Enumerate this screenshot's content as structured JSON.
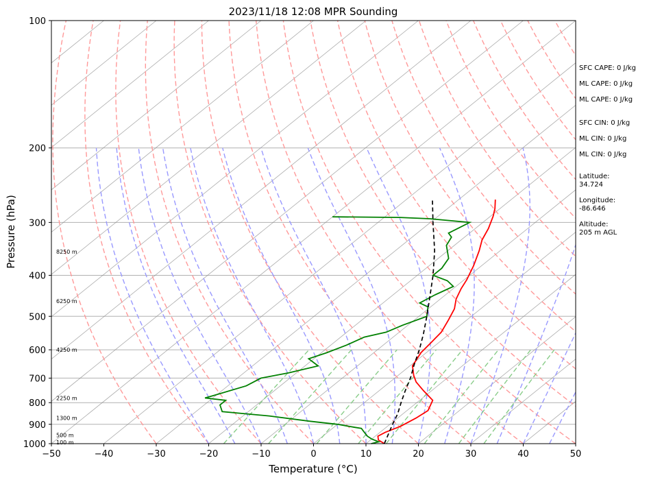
{
  "chart_data": {
    "type": "line",
    "title": "2023/11/18 12:08 MPR Sounding",
    "xlabel": "Temperature (°C)",
    "ylabel": "Pressure (hPa)",
    "xlim": [
      -50,
      50
    ],
    "ylim": [
      1000,
      100
    ],
    "y_scale": "log",
    "grid": true,
    "x_ticks": [
      -50,
      -40,
      -30,
      -20,
      -10,
      0,
      10,
      20,
      30,
      40,
      50
    ],
    "y_ticks": [
      100,
      200,
      300,
      400,
      500,
      600,
      700,
      800,
      900,
      1000
    ],
    "series": [
      {
        "color": "#ff0000",
        "points": [
          {
            "p": 1000,
            "t": 13.5
          },
          {
            "p": 980,
            "t": 11.5
          },
          {
            "p": 960,
            "t": 10.5
          },
          {
            "p": 940,
            "t": 11.0
          },
          {
            "p": 910,
            "t": 12.5
          },
          {
            "p": 870,
            "t": 13.5
          },
          {
            "p": 835,
            "t": 14.0
          },
          {
            "p": 790,
            "t": 12.5
          },
          {
            "p": 750,
            "t": 8.5
          },
          {
            "p": 715,
            "t": 5.0
          },
          {
            "p": 690,
            "t": 3.0
          },
          {
            "p": 655,
            "t": 0.5
          },
          {
            "p": 610,
            "t": -1.0
          },
          {
            "p": 575,
            "t": -1.5
          },
          {
            "p": 545,
            "t": -2.0
          },
          {
            "p": 510,
            "t": -3.5
          },
          {
            "p": 480,
            "t": -5.0
          },
          {
            "p": 455,
            "t": -7.0
          },
          {
            "p": 430,
            "t": -8.5
          },
          {
            "p": 410,
            "t": -9.5
          },
          {
            "p": 380,
            "t": -11.5
          },
          {
            "p": 350,
            "t": -14.0
          },
          {
            "p": 330,
            "t": -16.0
          },
          {
            "p": 310,
            "t": -17.5
          },
          {
            "p": 290,
            "t": -19.5
          },
          {
            "p": 278,
            "t": -21.0
          },
          {
            "p": 265,
            "t": -23.0
          }
        ]
      },
      {
        "color": "#008000",
        "points": [
          {
            "p": 1000,
            "t": 11.0
          },
          {
            "p": 990,
            "t": 12.0
          },
          {
            "p": 975,
            "t": 10.0
          },
          {
            "p": 960,
            "t": 8.5
          },
          {
            "p": 940,
            "t": 7.0
          },
          {
            "p": 920,
            "t": 5.5
          },
          {
            "p": 915,
            "t": 4.0
          },
          {
            "p": 900,
            "t": 0.0
          },
          {
            "p": 885,
            "t": -6.0
          },
          {
            "p": 860,
            "t": -15.0
          },
          {
            "p": 840,
            "t": -25.0
          },
          {
            "p": 810,
            "t": -27.0
          },
          {
            "p": 790,
            "t": -27.0
          },
          {
            "p": 780,
            "t": -31.5
          },
          {
            "p": 770,
            "t": -30.5
          },
          {
            "p": 730,
            "t": -26.5
          },
          {
            "p": 700,
            "t": -25.5
          },
          {
            "p": 680,
            "t": -21.5
          },
          {
            "p": 655,
            "t": -17.5
          },
          {
            "p": 630,
            "t": -21.0
          },
          {
            "p": 610,
            "t": -19.0
          },
          {
            "p": 585,
            "t": -17.0
          },
          {
            "p": 560,
            "t": -15.5
          },
          {
            "p": 545,
            "t": -12.5
          },
          {
            "p": 525,
            "t": -11.0
          },
          {
            "p": 500,
            "t": -8.5
          },
          {
            "p": 475,
            "t": -10.5
          },
          {
            "p": 465,
            "t": -13.0
          },
          {
            "p": 445,
            "t": -12.0
          },
          {
            "p": 425,
            "t": -10.5
          },
          {
            "p": 412,
            "t": -13.0
          },
          {
            "p": 400,
            "t": -17.0
          },
          {
            "p": 385,
            "t": -17.0
          },
          {
            "p": 365,
            "t": -18.0
          },
          {
            "p": 340,
            "t": -21.5
          },
          {
            "p": 325,
            "t": -22.5
          },
          {
            "p": 318,
            "t": -24.0
          },
          {
            "p": 300,
            "t": -22.5
          },
          {
            "p": 294,
            "t": -31.0
          },
          {
            "p": 292,
            "t": -37.0
          },
          {
            "p": 291,
            "t": -50.0
          }
        ]
      },
      {
        "color": "#000000",
        "dashed": true,
        "points": [
          {
            "p": 1000,
            "t": 13.5
          },
          {
            "p": 900,
            "t": 10.5
          },
          {
            "p": 850,
            "t": 9.0
          },
          {
            "p": 800,
            "t": 7.0
          },
          {
            "p": 750,
            "t": 5.0
          },
          {
            "p": 700,
            "t": 3.0
          },
          {
            "p": 650,
            "t": 0.5
          },
          {
            "p": 600,
            "t": -2.0
          },
          {
            "p": 550,
            "t": -5.0
          },
          {
            "p": 500,
            "t": -8.5
          },
          {
            "p": 450,
            "t": -12.5
          },
          {
            "p": 400,
            "t": -17.0
          },
          {
            "p": 350,
            "t": -22.5
          },
          {
            "p": 300,
            "t": -29.5
          },
          {
            "p": 265,
            "t": -35.0
          }
        ]
      }
    ],
    "height_labels": [
      {
        "p": 352,
        "text": "8250 m"
      },
      {
        "p": 460,
        "text": "6250 m"
      },
      {
        "p": 600,
        "text": "4250 m"
      },
      {
        "p": 780,
        "text": "2250 m"
      },
      {
        "p": 870,
        "text": "1300 m"
      },
      {
        "p": 955,
        "text": "500 m"
      },
      {
        "p": 993,
        "text": "100 m"
      }
    ],
    "annotations": [
      "SFC CAPE: 0 J/kg",
      "ML CAPE: 0 J/kg",
      "ML CAPE: 0 J/kg",
      "SFC CIN: 0 J/kg",
      "ML CIN: 0 J/kg",
      "ML CIN: 0 J/kg",
      "Latitude:",
      "34.724",
      "Longitude:",
      "-86.646",
      "Altitude:",
      "205 m AGL"
    ],
    "background_lines": {
      "isotherm_color": "#888888",
      "dry_adiabat_color": "#ff9999",
      "moist_adiabat_color": "#9999ff",
      "mixing_ratio_color": "#88cc88"
    }
  }
}
